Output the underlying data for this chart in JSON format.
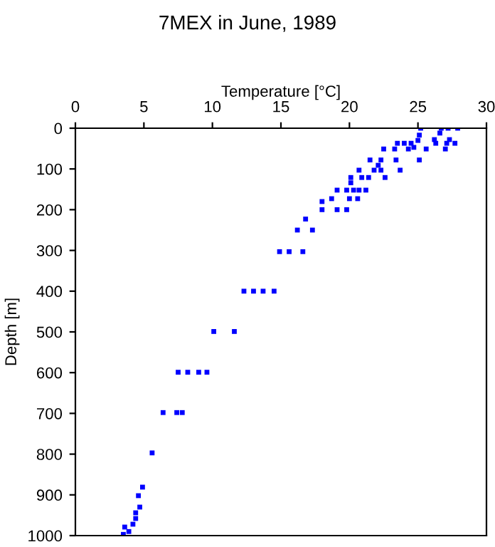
{
  "chart_data": {
    "type": "scatter",
    "title": "7MEX in June, 1989",
    "xlabel": "Temperature [°C]",
    "ylabel": "Depth [m]",
    "marker": "square",
    "grid": false,
    "xlim": [
      0,
      30
    ],
    "xticks": [
      0,
      5,
      10,
      15,
      20,
      25,
      30
    ],
    "ylim": [
      1000,
      0
    ],
    "yticks": [
      0,
      100,
      200,
      300,
      400,
      500,
      600,
      700,
      800,
      900,
      1000
    ],
    "series": [
      {
        "color": "#0000ff",
        "x": [
          25.2,
          26.7,
          27.2,
          27.9,
          25.1,
          26.6,
          27.3,
          26.2,
          25.0,
          23.5,
          24.0,
          24.5,
          26.3,
          27.1,
          27.7,
          22.5,
          23.3,
          24.3,
          24.7,
          25.6,
          27.0,
          21.5,
          22.3,
          23.4,
          25.1,
          22.1,
          20.7,
          21.8,
          22.3,
          23.7,
          20.1,
          20.9,
          21.4,
          22.6,
          20.1,
          19.1,
          19.8,
          20.3,
          20.7,
          21.2,
          18.7,
          20.0,
          20.6,
          18.0,
          18.0,
          19.1,
          19.8,
          16.8,
          16.2,
          17.3,
          14.9,
          15.6,
          16.6,
          12.3,
          13.0,
          13.7,
          14.5,
          10.1,
          11.6,
          7.5,
          8.2,
          9.0,
          9.6,
          6.4,
          7.4,
          7.8,
          5.6,
          4.9,
          4.6,
          4.7,
          4.4,
          4.4,
          4.2,
          3.6,
          3.9,
          3.5
        ],
        "values": [
          0,
          0,
          0,
          0,
          17,
          12,
          28,
          28,
          30,
          37,
          37,
          37,
          37,
          37,
          37,
          51,
          51,
          51,
          47,
          51,
          51,
          78,
          78,
          78,
          78,
          91,
          103,
          103,
          103,
          103,
          121,
          121,
          121,
          121,
          134,
          152,
          152,
          152,
          152,
          152,
          173,
          173,
          173,
          180,
          200,
          200,
          200,
          223,
          250,
          250,
          303,
          303,
          303,
          400,
          400,
          400,
          400,
          499,
          499,
          599,
          599,
          599,
          599,
          698,
          698,
          698,
          797,
          881,
          902,
          930,
          944,
          958,
          972,
          979,
          990,
          997
        ]
      }
    ]
  }
}
